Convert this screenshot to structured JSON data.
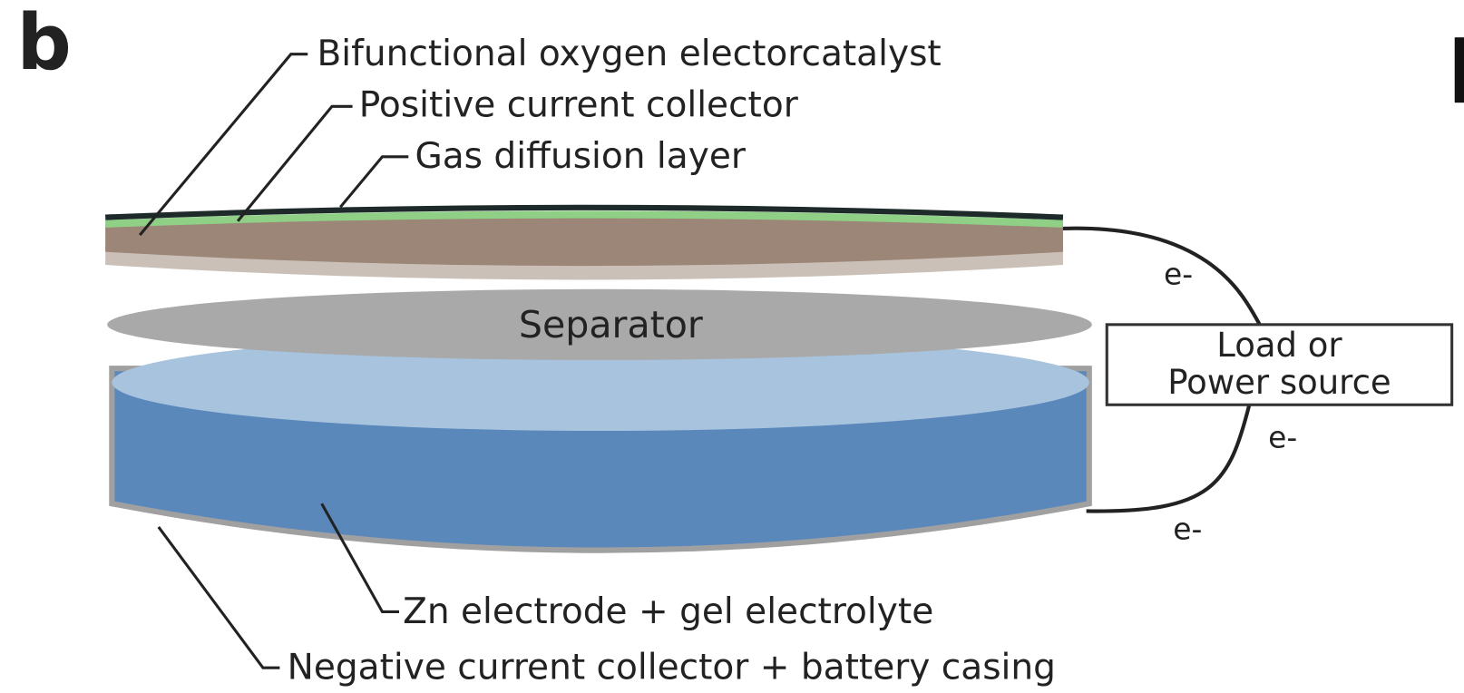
{
  "panel_label": "b",
  "top_labels": [
    "Bifunctional oxygen electorcatalyst",
    "Positive current collector",
    "Gas diffusion layer"
  ],
  "separator": "Separator",
  "load": [
    "Load or",
    "Power source"
  ],
  "electrons": [
    "e-",
    "e-",
    "e-"
  ],
  "bottom_labels": [
    "Zn electrode + gel electrolyte",
    "Negative current collector + battery casing"
  ]
}
